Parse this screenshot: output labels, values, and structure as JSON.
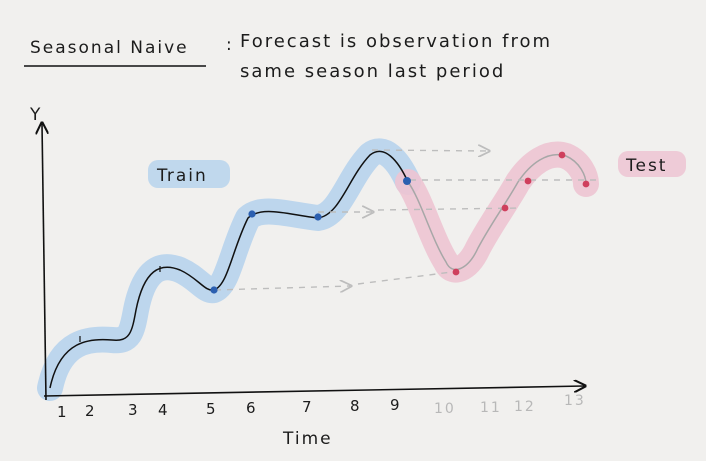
{
  "title": {
    "label": "Seasonal Naive",
    "separator": ":",
    "line1": "Forecast is observation from",
    "line2": "same season last period"
  },
  "axes": {
    "y_label": "Y",
    "x_label": "Time",
    "train_ticks": [
      "1",
      "2",
      "3",
      "4",
      "5",
      "6",
      "7",
      "8",
      "9"
    ],
    "test_ticks": [
      "10",
      "11",
      "12",
      "13"
    ]
  },
  "legend": {
    "train": "Train",
    "test": "Test"
  },
  "colors": {
    "train_band": "#b7d3ec",
    "test_band": "#edc4d2",
    "train_line": "#111111",
    "test_line": "#a7a7a7",
    "train_point": "#2b5fb0",
    "test_point": "#cf3f5d",
    "arrow": "#bdbdbd",
    "axis": "#111111",
    "test_tick": "#b8b8b8"
  },
  "diagram": {
    "seasonal_points_train": [
      "t=5",
      "t=6",
      "t=7",
      "t=9"
    ],
    "forecast_points_test": [
      "t=10",
      "t=11",
      "t=12",
      "t=13"
    ],
    "arrow_count": 4
  }
}
